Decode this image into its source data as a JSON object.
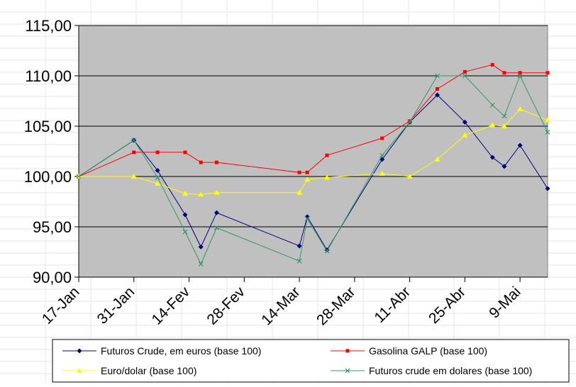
{
  "chart_data": {
    "type": "line",
    "title": "",
    "xlabel": "",
    "ylabel": "",
    "ylim": [
      90,
      115
    ],
    "yticks": [
      "90,00",
      "95,00",
      "100,00",
      "105,00",
      "110,00",
      "115,00"
    ],
    "x_tick_labels": [
      "17-Jan",
      "31-Jan",
      "14-Fev",
      "28-Fev",
      "14-Mar",
      "28-Mar",
      "11-Abr",
      "25-Abr",
      "9-Mai"
    ],
    "grid": true,
    "legend_position": "bottom",
    "plot_background": "#c0c0c0",
    "series": [
      {
        "name": "Futuros Crude, em euros (base 100)",
        "color": "#000080",
        "marker": "diamond",
        "points": [
          {
            "day": 0,
            "value": 100.0
          },
          {
            "day": 14,
            "value": 103.6
          },
          {
            "day": 20,
            "value": 100.6
          },
          {
            "day": 27,
            "value": 96.2
          },
          {
            "day": 31,
            "value": 93.0
          },
          {
            "day": 35,
            "value": 96.4
          },
          {
            "day": 56,
            "value": 93.1
          },
          {
            "day": 58,
            "value": 96.0
          },
          {
            "day": 63,
            "value": 92.7
          },
          {
            "day": 77,
            "value": 101.7
          },
          {
            "day": 84,
            "value": 105.4
          },
          {
            "day": 91,
            "value": 108.1
          },
          {
            "day": 98,
            "value": 105.4
          },
          {
            "day": 105,
            "value": 101.9
          },
          {
            "day": 108,
            "value": 101.0
          },
          {
            "day": 112,
            "value": 103.1
          },
          {
            "day": 119,
            "value": 98.8
          }
        ]
      },
      {
        "name": "Gasolina GALP (base 100)",
        "color": "#ff0000",
        "marker": "square",
        "points": [
          {
            "day": 0,
            "value": 100.0
          },
          {
            "day": 14,
            "value": 102.4
          },
          {
            "day": 20,
            "value": 102.4
          },
          {
            "day": 27,
            "value": 102.4
          },
          {
            "day": 31,
            "value": 101.4
          },
          {
            "day": 35,
            "value": 101.4
          },
          {
            "day": 56,
            "value": 100.4
          },
          {
            "day": 58,
            "value": 100.4
          },
          {
            "day": 63,
            "value": 102.1
          },
          {
            "day": 77,
            "value": 103.8
          },
          {
            "day": 84,
            "value": 105.5
          },
          {
            "day": 91,
            "value": 108.7
          },
          {
            "day": 98,
            "value": 110.4
          },
          {
            "day": 105,
            "value": 111.1
          },
          {
            "day": 108,
            "value": 110.3
          },
          {
            "day": 112,
            "value": 110.3
          },
          {
            "day": 119,
            "value": 110.3
          }
        ]
      },
      {
        "name": "Euro/dolar (base 100)",
        "color": "#ffff00",
        "marker": "triangle",
        "points": [
          {
            "day": 0,
            "value": 100.0
          },
          {
            "day": 14,
            "value": 100.0
          },
          {
            "day": 20,
            "value": 99.3
          },
          {
            "day": 27,
            "value": 98.3
          },
          {
            "day": 31,
            "value": 98.2
          },
          {
            "day": 35,
            "value": 98.4
          },
          {
            "day": 56,
            "value": 98.4
          },
          {
            "day": 58,
            "value": 99.7
          },
          {
            "day": 63,
            "value": 99.9
          },
          {
            "day": 77,
            "value": 100.3
          },
          {
            "day": 84,
            "value": 100.0
          },
          {
            "day": 91,
            "value": 101.7
          },
          {
            "day": 98,
            "value": 104.1
          },
          {
            "day": 105,
            "value": 105.1
          },
          {
            "day": 108,
            "value": 105.0
          },
          {
            "day": 112,
            "value": 106.7
          },
          {
            "day": 119,
            "value": 105.6
          }
        ]
      },
      {
        "name": "Futuros crude em dolares (base 100)",
        "color": "#339966",
        "marker": "x",
        "points": [
          {
            "day": 0,
            "value": 100.0
          },
          {
            "day": 14,
            "value": 103.6
          },
          {
            "day": 20,
            "value": 99.9
          },
          {
            "day": 27,
            "value": 94.5
          },
          {
            "day": 31,
            "value": 91.3
          },
          {
            "day": 35,
            "value": 94.9
          },
          {
            "day": 56,
            "value": 91.6
          },
          {
            "day": 58,
            "value": 95.8
          },
          {
            "day": 63,
            "value": 92.6
          },
          {
            "day": 77,
            "value": 102.1
          },
          {
            "day": 84,
            "value": 105.4
          },
          {
            "day": 91,
            "value": 110.0
          },
          {
            "day": 98,
            "value": 110.0
          },
          {
            "day": 105,
            "value": 107.1
          },
          {
            "day": 108,
            "value": 106.0
          },
          {
            "day": 112,
            "value": 110.0
          },
          {
            "day": 119,
            "value": 104.4
          }
        ]
      }
    ]
  }
}
